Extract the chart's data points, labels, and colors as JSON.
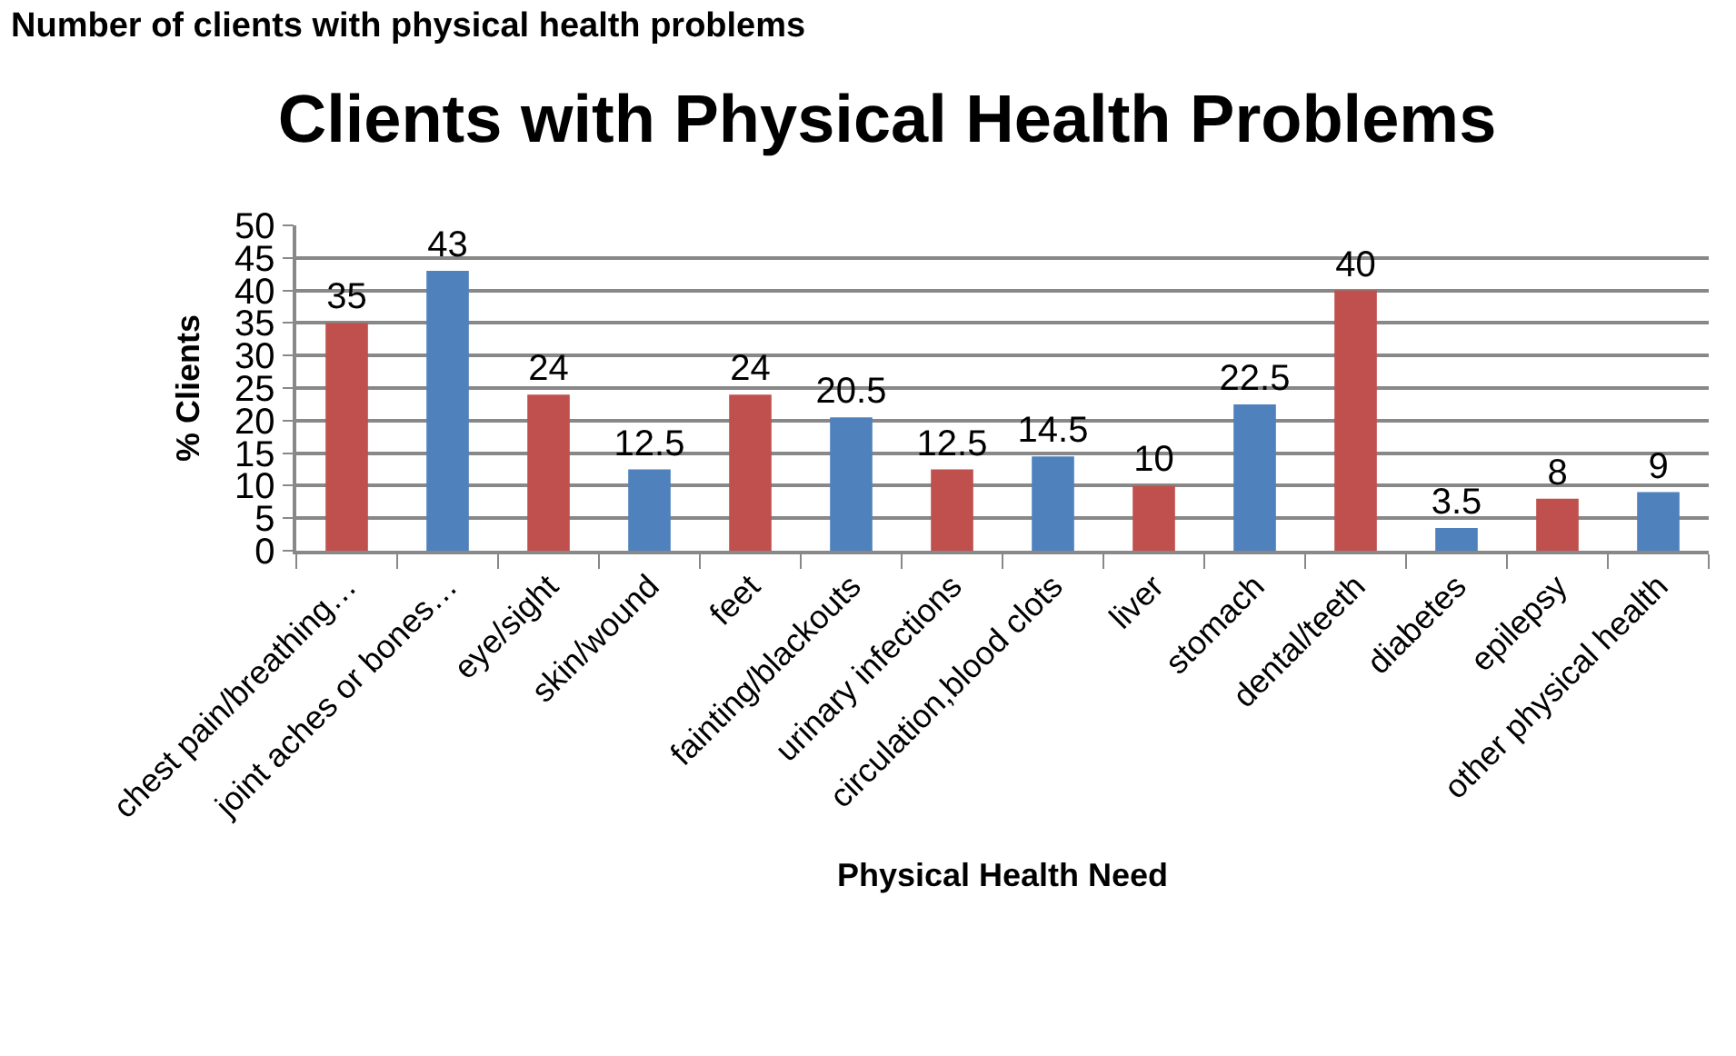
{
  "chart_data": {
    "type": "bar",
    "title": "Clients with Physical Health Problems",
    "xlabel": "Physical Health Need",
    "ylabel": "% Clients",
    "annotations": [
      "Number of clients with physical health problems"
    ],
    "categories": [
      "chest pain/breathing…",
      "joint aches or bones…",
      "eye/sight",
      "skin/wound",
      "feet",
      "fainting/blackouts",
      "urinary infections",
      "circulation,blood clots",
      "liver",
      "stomach",
      "dental/teeth",
      "diabetes",
      "epilepsy",
      "other physical health"
    ],
    "values": [
      35,
      43,
      24,
      12.5,
      24,
      20.5,
      12.5,
      14.5,
      10,
      22.5,
      40,
      3.5,
      8,
      9
    ],
    "colors": [
      "#c0504d",
      "#4f81bd",
      "#c0504d",
      "#4f81bd",
      "#c0504d",
      "#4f81bd",
      "#c0504d",
      "#4f81bd",
      "#c0504d",
      "#4f81bd",
      "#c0504d",
      "#4f81bd",
      "#c0504d",
      "#4f81bd"
    ],
    "ylim": [
      0,
      50
    ],
    "yticks": [
      0,
      5,
      10,
      15,
      20,
      25,
      30,
      35,
      40,
      45,
      50
    ],
    "grid": "y",
    "data_labels": true
  }
}
